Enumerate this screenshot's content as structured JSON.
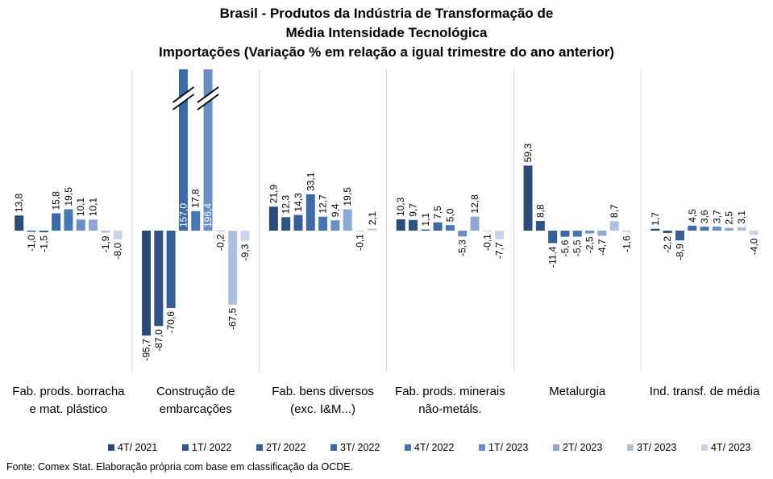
{
  "chart_data": {
    "type": "bar",
    "title": [
      "Brasil - Produtos da Indústria de Transformação de",
      "Média Intensidade Tecnológica",
      "Importações (Variação % em relação a igual trimestre do ano anterior)"
    ],
    "source": "Fonte: Comex Stat. Elaboração própria com base em classificação da OCDE.",
    "categories": [
      [
        "Fab. prods. borracha",
        "e mat. plástico"
      ],
      [
        "Construção de",
        "embarcações"
      ],
      [
        "Fab. bens diversos",
        "(exc. I&M...)"
      ],
      [
        "Fab. prods. minerais",
        "não-metáls."
      ],
      [
        "Metalurgia"
      ],
      [
        "Ind. transf. de média"
      ]
    ],
    "series": [
      {
        "name": "4T/ 2021",
        "color": "#2e4a77",
        "values": [
          13.8,
          -95.7,
          21.9,
          10.3,
          59.3,
          1.7
        ]
      },
      {
        "name": "1T/ 2022",
        "color": "#2f5485",
        "values": [
          -1.0,
          -87.0,
          12.3,
          9.7,
          8.8,
          -2.2
        ]
      },
      {
        "name": "2T/ 2022",
        "color": "#355f96",
        "values": [
          -1.5,
          -70.6,
          14.3,
          1.1,
          -11.4,
          -8.9
        ]
      },
      {
        "name": "3T/ 2022",
        "color": "#3d6aa7",
        "values": [
          15.8,
          157.0,
          33.1,
          7.5,
          -5.6,
          4.5
        ]
      },
      {
        "name": "4T/ 2022",
        "color": "#4876b5",
        "values": [
          19.5,
          17.8,
          12.7,
          5.0,
          -5.5,
          3.6
        ]
      },
      {
        "name": "1T/ 2023",
        "color": "#6b8fc5",
        "values": [
          10.1,
          196.4,
          9.4,
          -5.3,
          -2.5,
          3.7
        ]
      },
      {
        "name": "2T/ 2023",
        "color": "#8ea9d3",
        "values": [
          10.1,
          -0.2,
          19.5,
          12.8,
          -4.7,
          2.5
        ]
      },
      {
        "name": "3T/ 2023",
        "color": "#aebfe0",
        "values": [
          -1.9,
          -67.5,
          -0.1,
          -0.1,
          8.7,
          3.1
        ]
      },
      {
        "name": "4T/ 2023",
        "color": "#c9d4ea",
        "values": [
          -8.0,
          -9.3,
          2.1,
          -7.7,
          -1.6,
          -4.0
        ]
      }
    ],
    "value_labels": [
      [
        "13,8",
        "-95,7",
        "21,9",
        "10,3",
        "59,3",
        "1,7"
      ],
      [
        "-1,0",
        "-87,0",
        "12,3",
        "9,7",
        "8,8",
        "-2,2"
      ],
      [
        "-1,5",
        "-70,6",
        "14,3",
        "1,1",
        "-11,4",
        "-8,9"
      ],
      [
        "15,8",
        "157,0",
        "33,1",
        "7,5",
        "-5,6",
        "4,5"
      ],
      [
        "19,5",
        "17,8",
        "12,7",
        "5,0",
        "-5,5",
        "3,6"
      ],
      [
        "10,1",
        "196,4",
        "9,4",
        "-5,3",
        "-2,5",
        "3,7"
      ],
      [
        "10,1",
        "-0,2",
        "19,5",
        "12,8",
        "-4,7",
        "2,5"
      ],
      [
        "-1,9",
        "-67,5",
        "-0,1",
        "-0,1",
        "8,7",
        "3,1"
      ],
      [
        "-8,0",
        "-9,3",
        "2,1",
        "-7,7",
        "-1,6",
        "-4,0"
      ]
    ],
    "axis_break": {
      "series": [
        "3T/ 2022",
        "1T/ 2023"
      ],
      "category": "Construção de embarcações"
    },
    "legend_position": "bottom",
    "grid": false
  }
}
